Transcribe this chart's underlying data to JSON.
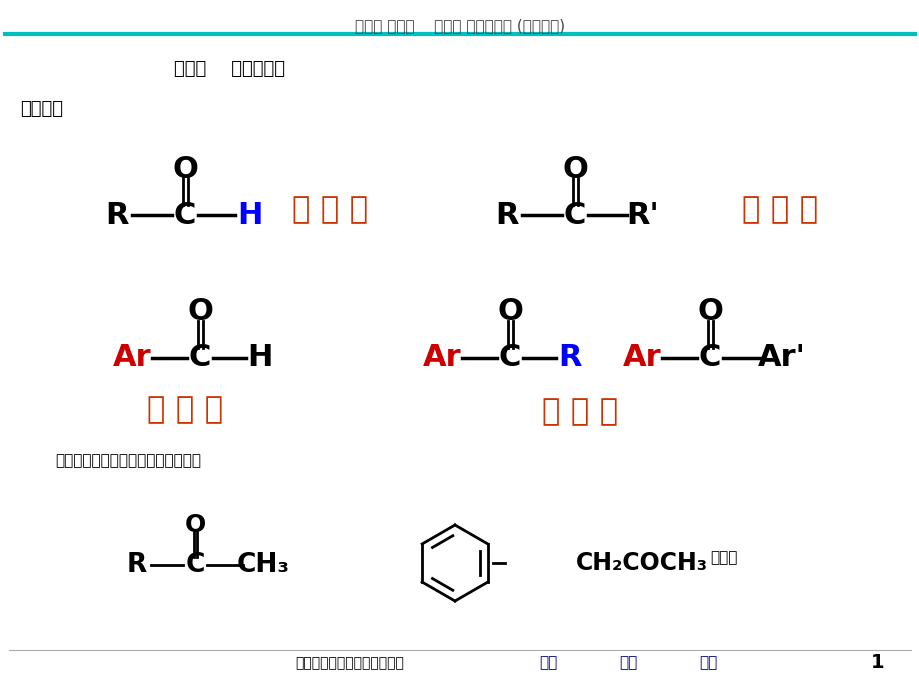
{
  "title_header": "第九章 醛和酮    第一节 分类和命名 (一、分类)",
  "header_line_color": "#00BFBF",
  "section_title": "第一节    分类和命名",
  "section1": "一、分类",
  "note_text": "芳香醛酮的羰基直接连在芳香环上。",
  "footer_text": "医学用有机化学第九章醛和酮",
  "footer_links": [
    "上页",
    "下页",
    "首页"
  ],
  "footer_number": "1",
  "bg_color": "#FFFFFF",
  "header_text_color": "#444444",
  "black": "#000000",
  "blue": "#0000FF",
  "red": "#CC0000",
  "orange_red": "#CC3300",
  "nav_blue": "#000080",
  "label_color": "#CC3300"
}
